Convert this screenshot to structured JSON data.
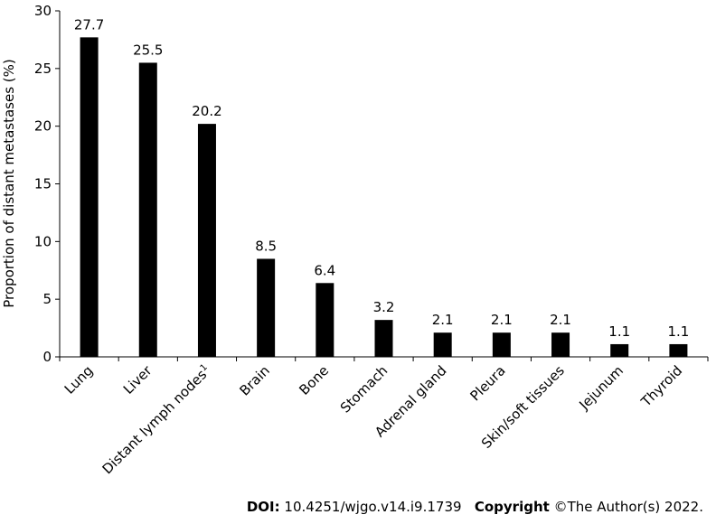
{
  "chart_data": {
    "type": "bar",
    "categories": [
      "Lung",
      "Liver",
      "Distant lymph nodes",
      "Brain",
      "Bone",
      "Stomach",
      "Adrenal gland",
      "Pleura",
      "Skin/soft tissues",
      "Jejunum",
      "Thyroid"
    ],
    "category_superscripts": [
      "",
      "",
      "1",
      "",
      "",
      "",
      "",
      "",
      "",
      "",
      ""
    ],
    "values": [
      27.7,
      25.5,
      20.2,
      8.5,
      6.4,
      3.2,
      2.1,
      2.1,
      2.1,
      1.1,
      1.1
    ],
    "value_labels": [
      "27.7",
      "25.5",
      "20.2",
      "8.5",
      "6.4",
      "3.2",
      "2.1",
      "2.1",
      "2.1",
      "1.1",
      "1.1"
    ],
    "ylabel": "Proportion of distant metastases (%)",
    "ylim": [
      0,
      30
    ],
    "yticks": [
      0,
      5,
      10,
      15,
      20,
      25,
      30
    ],
    "grid": false,
    "bar_color": "#000000"
  },
  "footer": {
    "doi_label": "DOI:",
    "doi_value": "10.4251/wjgo.v14.i9.1739",
    "copyright_label": "Copyright",
    "copyright_value": "©The Author(s) 2022."
  }
}
